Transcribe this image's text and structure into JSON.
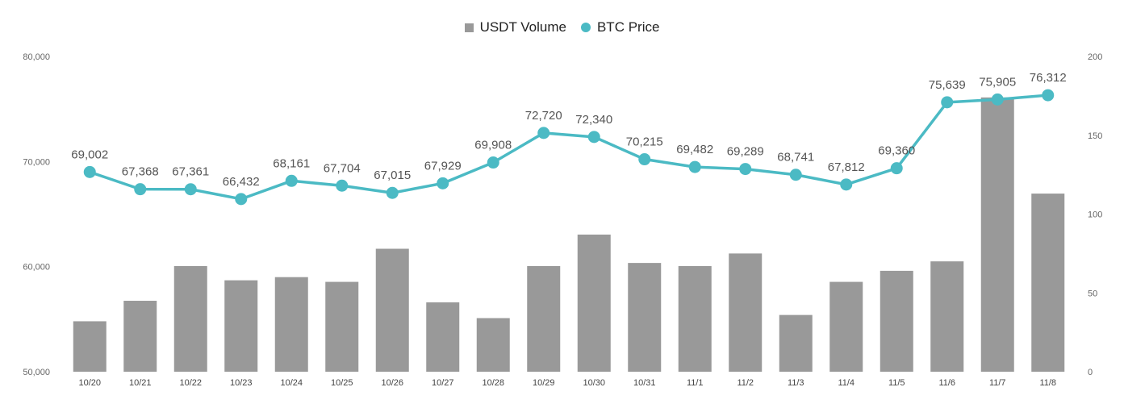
{
  "chart_data": {
    "type": "bar",
    "categories": [
      "10/20",
      "10/21",
      "10/22",
      "10/23",
      "10/24",
      "10/25",
      "10/26",
      "10/27",
      "10/28",
      "10/29",
      "10/30",
      "10/31",
      "11/1",
      "11/2",
      "11/3",
      "11/4",
      "11/5",
      "11/6",
      "11/7",
      "11/8"
    ],
    "series": [
      {
        "name": "USDT Volume",
        "type": "bar",
        "axis": "right",
        "color": "#999999",
        "values": [
          32,
          45,
          67,
          58,
          60,
          57,
          78,
          44,
          34,
          67,
          87,
          69,
          67,
          75,
          36,
          57,
          64,
          70,
          174,
          113
        ]
      },
      {
        "name": "BTC Price",
        "type": "line",
        "axis": "left",
        "color": "#4bbac4",
        "values": [
          69002,
          67368,
          67361,
          66432,
          68161,
          67704,
          67015,
          67929,
          69908,
          72720,
          72340,
          70215,
          69482,
          69289,
          68741,
          67812,
          69360,
          75639,
          75905,
          76312
        ],
        "labels": [
          "69,002",
          "67,368",
          "67,361",
          "66,432",
          "68,161",
          "67,704",
          "67,015",
          "67,929",
          "69,908",
          "72,720",
          "72,340",
          "70,215",
          "69,482",
          "69,289",
          "68,741",
          "67,812",
          "69,360",
          "75,639",
          "75,905",
          "76,312"
        ]
      }
    ],
    "y_left": {
      "range": [
        50000,
        80000
      ],
      "ticks": [
        50000,
        60000,
        70000,
        80000
      ],
      "tick_labels": [
        "50,000",
        "60,000",
        "70,000",
        "80,000"
      ]
    },
    "y_right": {
      "range": [
        0,
        200
      ],
      "ticks": [
        0,
        50,
        100,
        150,
        200
      ],
      "tick_labels": [
        "0",
        "50",
        "100",
        "150",
        "200"
      ]
    },
    "legend": {
      "position": "top-center",
      "entries": [
        "USDT Volume",
        "BTC Price"
      ]
    },
    "grid": false,
    "title": "",
    "xlabel": "",
    "ylabel": ""
  }
}
